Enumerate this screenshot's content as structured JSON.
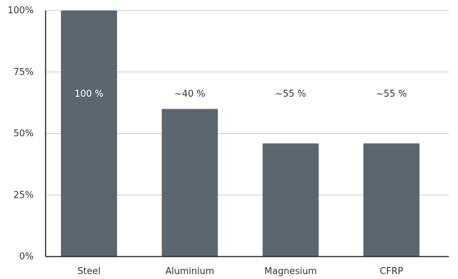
{
  "chart_data": {
    "type": "bar",
    "categories": [
      "Steel",
      "Aluminium",
      "Magnesium",
      "CFRP"
    ],
    "values": [
      100,
      60,
      46,
      46
    ],
    "data_labels": [
      "100 %",
      "~40 %",
      "~55 %",
      "~55 %"
    ],
    "y_ticks": [
      0,
      25,
      50,
      75,
      100
    ],
    "y_tick_labels": [
      "0%",
      "25%",
      "50%",
      "75%",
      "100%"
    ],
    "ylim": [
      0,
      100
    ],
    "grid": true,
    "title": "",
    "xlabel": "",
    "ylabel": "",
    "colors": {
      "bar": "#5b666e",
      "grid": "#c8c8c8",
      "axis": "#222222",
      "text": "#333333",
      "label_on_bar": "#ffffff",
      "label_above_bar": "#333333"
    }
  }
}
